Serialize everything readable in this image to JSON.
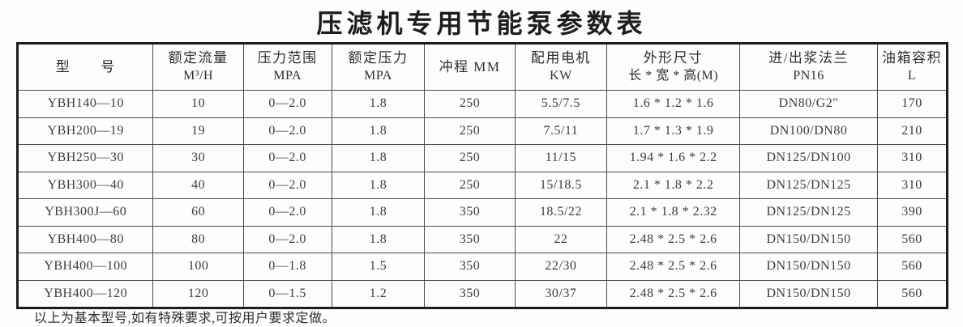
{
  "title": "压滤机专用节能泵参数表",
  "footnote": "以上为基本型号,如有特殊要求,可按用户要求定做。",
  "colors": {
    "background": "#fdfdfd",
    "text": "#3d3d3d",
    "header_text": "#2e2e2e",
    "outer_border": "#1c1c1c",
    "inner_border": "#4c4c4c"
  },
  "chart_data": {
    "type": "table",
    "title": "压滤机专用节能泵参数表",
    "columns": [
      {
        "line1": "型　　号",
        "line2": ""
      },
      {
        "line1": "额定流量",
        "line2": "M³/H"
      },
      {
        "line1": "压力范围",
        "line2": "MPA"
      },
      {
        "line1": "额定压力",
        "line2": "MPA"
      },
      {
        "line1": "冲程 MM",
        "line2": ""
      },
      {
        "line1": "配用电机",
        "line2": "KW"
      },
      {
        "line1": "外形尺寸",
        "line2": "长 * 宽 * 高(M)"
      },
      {
        "line1": "进/出浆法兰",
        "line2": "PN16"
      },
      {
        "line1": "油箱容积",
        "line2": "L"
      }
    ],
    "rows": [
      [
        "YBH140—10",
        "10",
        "0—2.0",
        "1.8",
        "250",
        "5.5/7.5",
        "1.6 * 1.2 * 1.6",
        "DN80/G2″",
        "170"
      ],
      [
        "YBH200—19",
        "19",
        "0—2.0",
        "1.8",
        "250",
        "7.5/11",
        "1.7 * 1.3 * 1.9",
        "DN100/DN80",
        "210"
      ],
      [
        "YBH250—30",
        "30",
        "0—2.0",
        "1.8",
        "250",
        "11/15",
        "1.94 * 1.6 * 2.2",
        "DN125/DN100",
        "310"
      ],
      [
        "YBH300—40",
        "40",
        "0—2.0",
        "1.8",
        "250",
        "15/18.5",
        "2.1 * 1.8 * 2.2",
        "DN125/DN125",
        "310"
      ],
      [
        "YBH300J—60",
        "60",
        "0—2.0",
        "1.8",
        "350",
        "18.5/22",
        "2.1 * 1.8 * 2.32",
        "DN125/DN125",
        "390"
      ],
      [
        "YBH400—80",
        "80",
        "0—2.0",
        "1.8",
        "350",
        "22",
        "2.48 * 2.5 * 2.6",
        "DN150/DN150",
        "560"
      ],
      [
        "YBH400—100",
        "100",
        "0—1.8",
        "1.5",
        "350",
        "22/30",
        "2.48 * 2.5 * 2.6",
        "DN150/DN150",
        "560"
      ],
      [
        "YBH400—120",
        "120",
        "0—1.5",
        "1.2",
        "350",
        "30/37",
        "2.48 * 2.5 * 2.6",
        "DN150/DN150",
        "560"
      ]
    ]
  }
}
